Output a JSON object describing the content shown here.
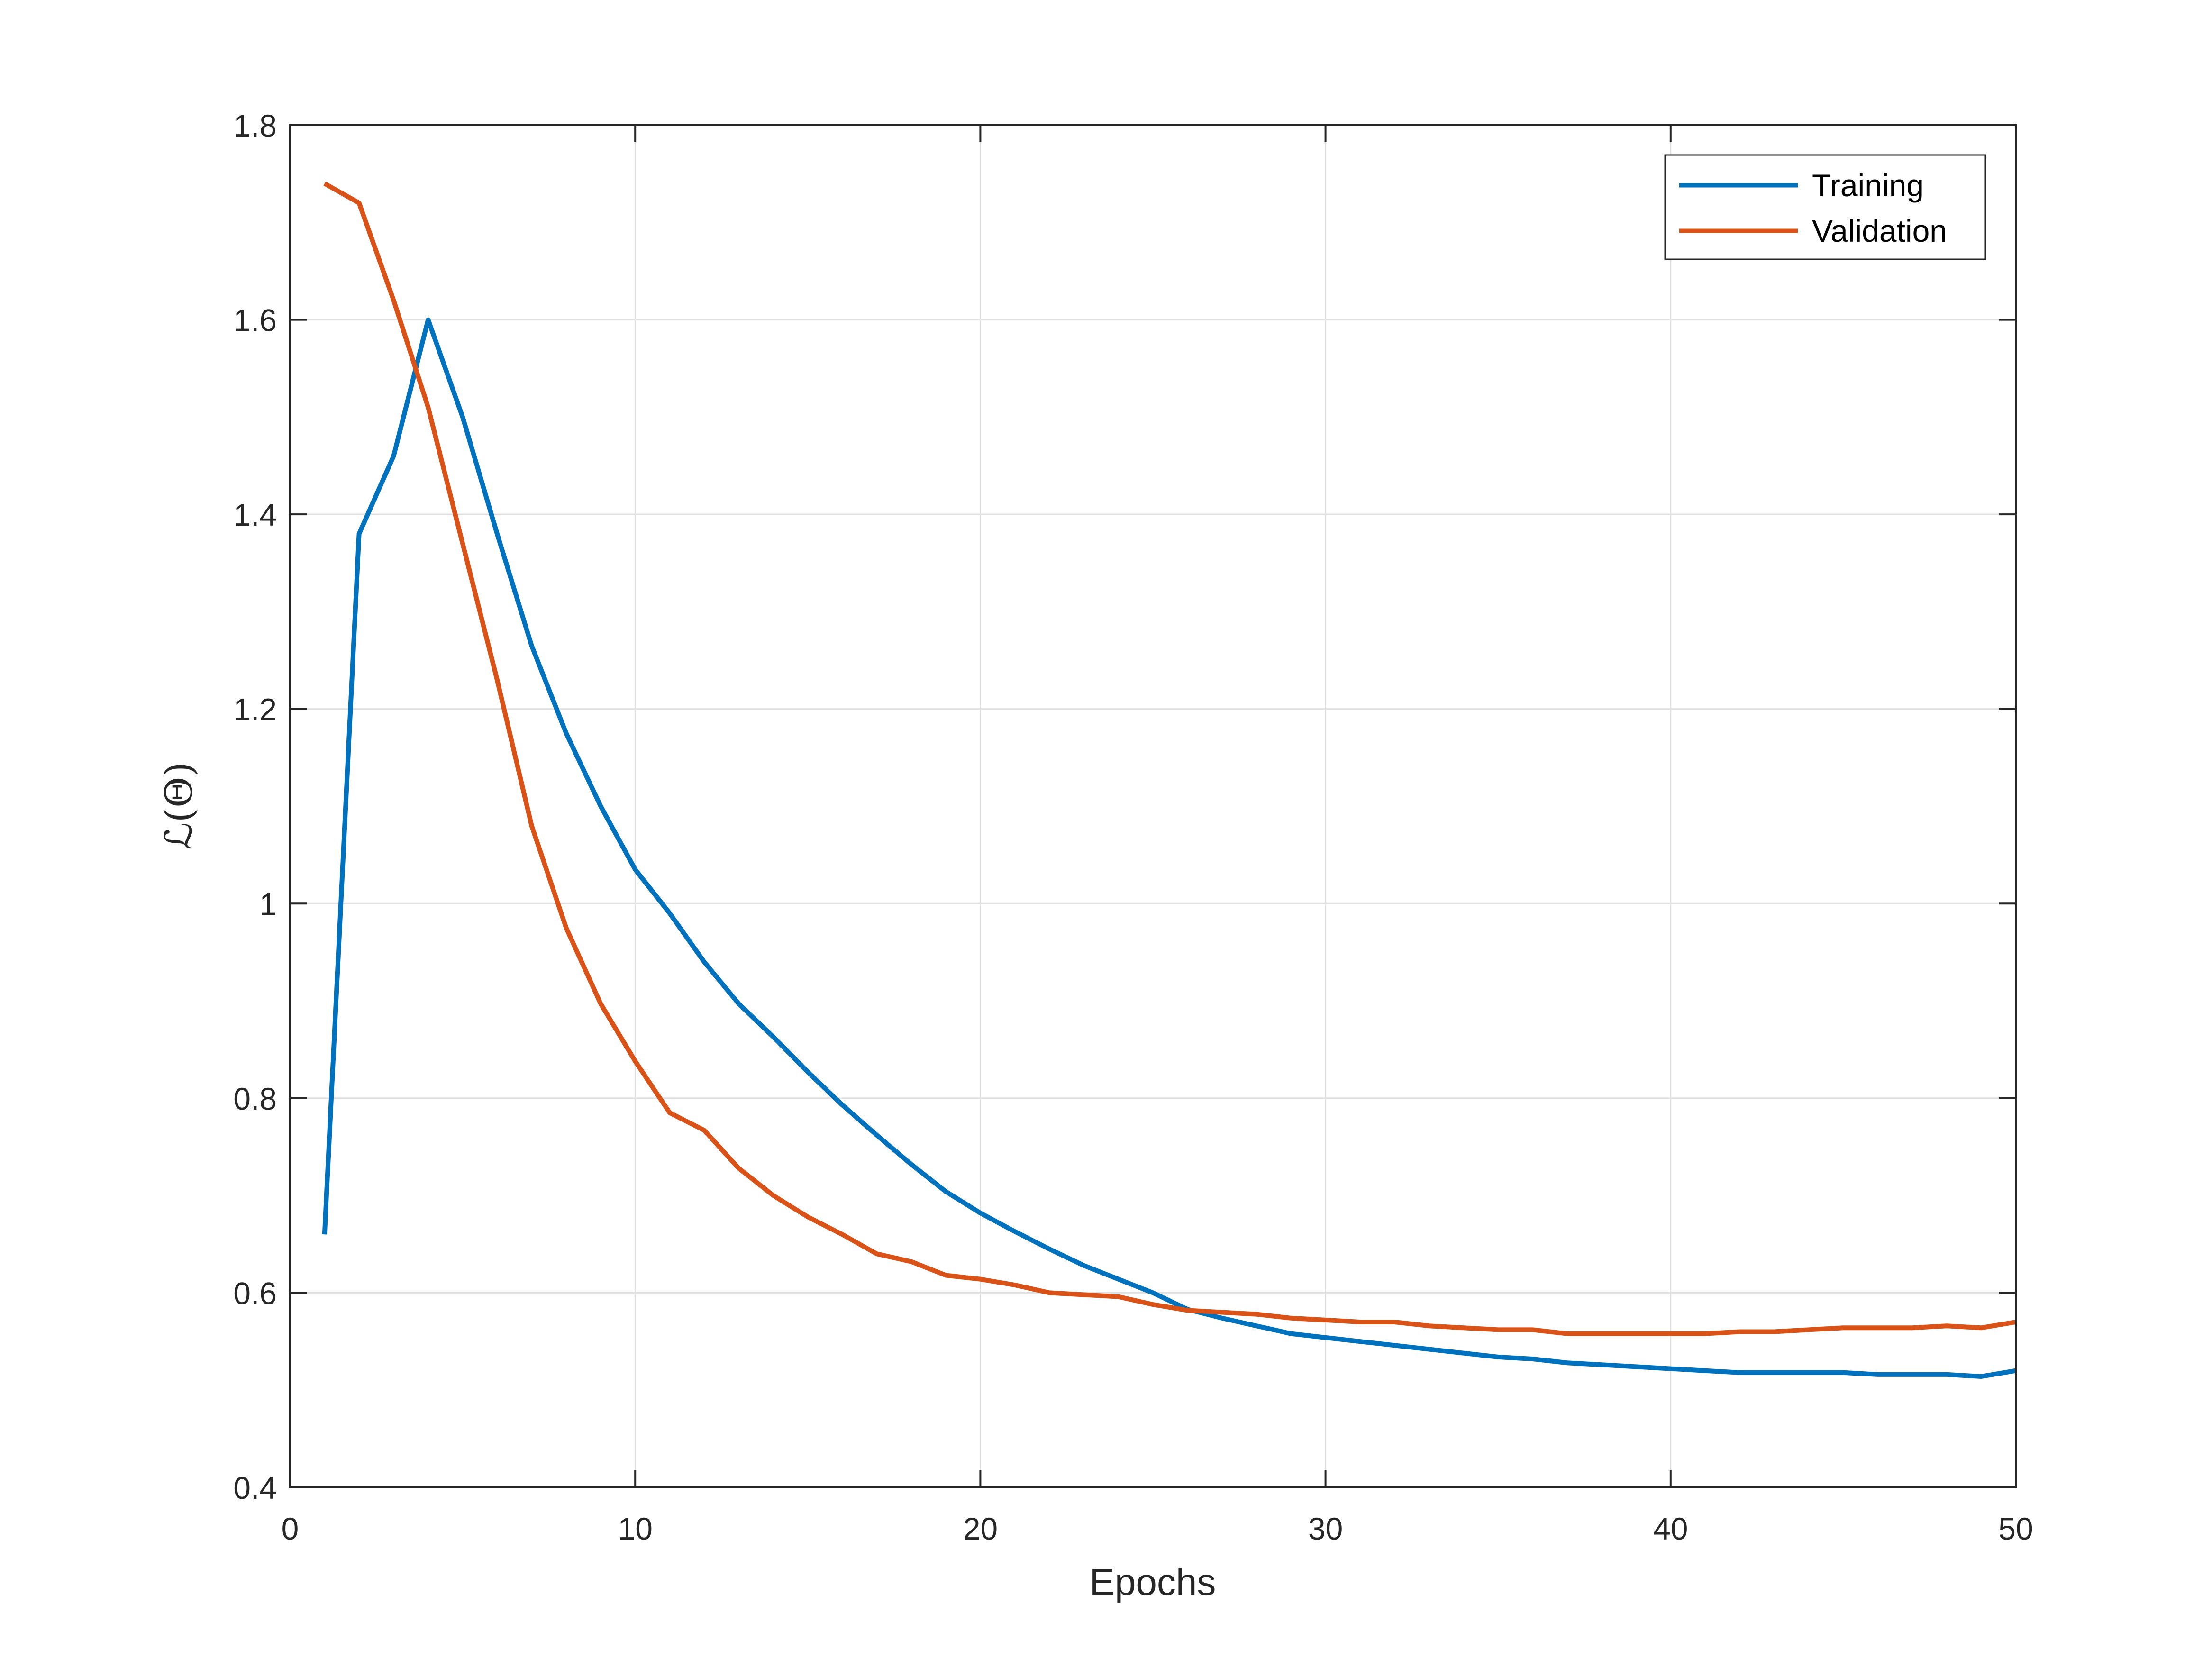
{
  "chart_data": {
    "type": "line",
    "title": "",
    "xlabel": "Epochs",
    "ylabel": "ℒ(Θ)",
    "xlim": [
      0,
      50
    ],
    "ylim": [
      0.4,
      1.8
    ],
    "xticks": [
      0,
      10,
      20,
      30,
      40,
      50
    ],
    "yticks": [
      0.4,
      0.6,
      0.8,
      1,
      1.2,
      1.4,
      1.6,
      1.8
    ],
    "xtick_labels": [
      "0",
      "10",
      "20",
      "30",
      "40",
      "50"
    ],
    "ytick_labels": [
      "0.4",
      "0.6",
      "0.8",
      "1",
      "1.2",
      "1.4",
      "1.6",
      "1.8"
    ],
    "grid": true,
    "legend_position": "top-right",
    "x": [
      1,
      2,
      3,
      4,
      5,
      6,
      7,
      8,
      9,
      10,
      11,
      12,
      13,
      14,
      15,
      16,
      17,
      18,
      19,
      20,
      21,
      22,
      23,
      24,
      25,
      26,
      27,
      28,
      29,
      30,
      31,
      32,
      33,
      34,
      35,
      36,
      37,
      38,
      39,
      40,
      41,
      42,
      43,
      44,
      45,
      46,
      47,
      48,
      49,
      50
    ],
    "series": [
      {
        "name": "Training",
        "color": "#0072BD",
        "values": [
          0.66,
          1.38,
          1.46,
          1.6,
          1.5,
          1.38,
          1.265,
          1.175,
          1.1,
          1.035,
          0.99,
          0.94,
          0.897,
          0.863,
          0.827,
          0.793,
          0.762,
          0.732,
          0.704,
          0.682,
          0.663,
          0.645,
          0.628,
          0.614,
          0.6,
          0.583,
          0.574,
          0.566,
          0.558,
          0.554,
          0.55,
          0.546,
          0.542,
          0.538,
          0.534,
          0.532,
          0.528,
          0.526,
          0.524,
          0.522,
          0.52,
          0.518,
          0.518,
          0.518,
          0.518,
          0.516,
          0.516,
          0.516,
          0.514,
          0.52
        ]
      },
      {
        "name": "Validation",
        "color": "#D95319",
        "values": [
          1.74,
          1.72,
          1.62,
          1.51,
          1.37,
          1.23,
          1.08,
          0.975,
          0.897,
          0.838,
          0.785,
          0.767,
          0.728,
          0.7,
          0.678,
          0.66,
          0.64,
          0.632,
          0.618,
          0.614,
          0.608,
          0.6,
          0.598,
          0.596,
          0.588,
          0.582,
          0.58,
          0.578,
          0.574,
          0.572,
          0.57,
          0.57,
          0.566,
          0.564,
          0.562,
          0.562,
          0.558,
          0.558,
          0.558,
          0.558,
          0.558,
          0.56,
          0.56,
          0.562,
          0.564,
          0.564,
          0.564,
          0.566,
          0.564,
          0.57
        ]
      }
    ]
  }
}
